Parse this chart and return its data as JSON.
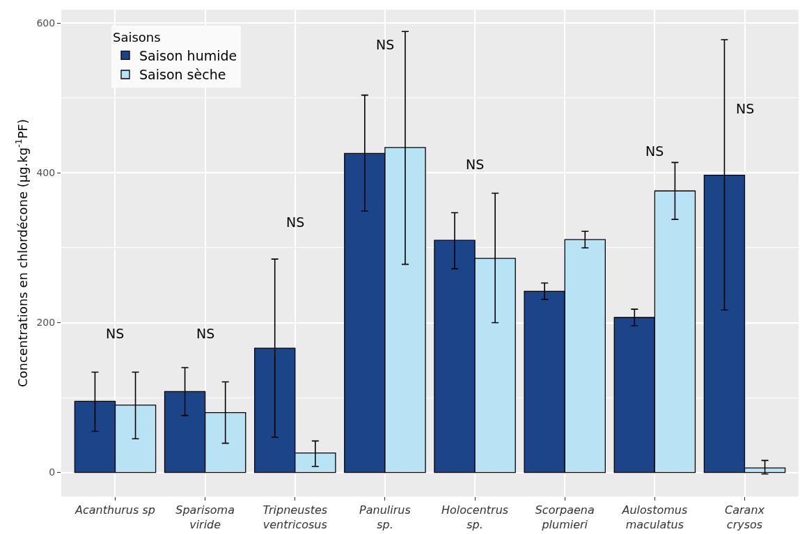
{
  "chart_data": {
    "type": "bar",
    "ylabel": "Concentrations en chlordécone (µg.kg$^{-1}$PF)",
    "legend_title": "Saisons",
    "categories": [
      "Acanthurus sp",
      "Sparisoma\nviride",
      "Tripneustes\nventricosus",
      "Panulirus\nsp.",
      "Holocentrus\nsp.",
      "Scorpaena\nplumieri",
      "Aulostomus\nmaculatus",
      "Caranx\ncrysos"
    ],
    "series": [
      {
        "name": "Saison humide",
        "color": "#1c4489",
        "values": [
          95,
          108,
          166,
          426,
          310,
          242,
          207,
          397
        ],
        "errors": [
          [
            55,
            134
          ],
          [
            76,
            140
          ],
          [
            47,
            285
          ],
          [
            349,
            504
          ],
          [
            272,
            347
          ],
          [
            231,
            253
          ],
          [
            196,
            218
          ],
          [
            217,
            578
          ]
        ]
      },
      {
        "name": "Saison sèche",
        "color": "#b8e3f5",
        "values": [
          90,
          80,
          26,
          434,
          286,
          311,
          376,
          6
        ],
        "errors": [
          [
            45,
            134
          ],
          [
            39,
            121
          ],
          [
            8,
            42
          ],
          [
            278,
            589
          ],
          [
            200,
            373
          ],
          [
            300,
            322
          ],
          [
            338,
            414
          ],
          [
            -2,
            16
          ]
        ]
      }
    ],
    "annotations": [
      "NS",
      "NS",
      "NS",
      "NS",
      "NS",
      "NS",
      "NS"
    ],
    "ylim": [
      -32,
      618
    ],
    "yticks": [
      0,
      200,
      400,
      600
    ],
    "grid": true,
    "legend": "top left"
  }
}
